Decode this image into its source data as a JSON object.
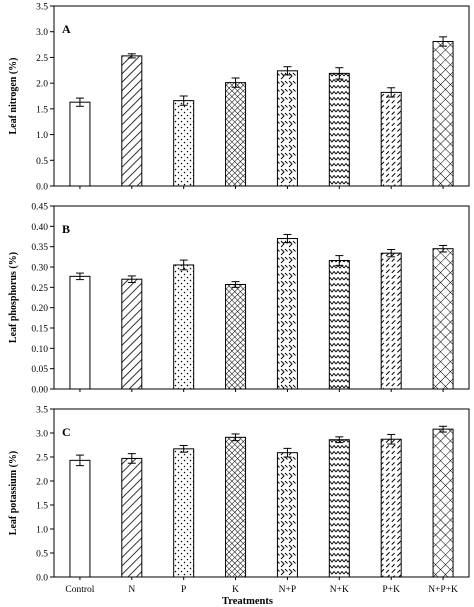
{
  "x_label": "Treatments",
  "chart_data": [
    {
      "type": "bar",
      "panel_label": "A",
      "ylabel": "Leaf nitrogen (%)",
      "ylim": [
        0,
        3.5
      ],
      "yticks": [
        "0.0",
        "0.5",
        "1.0",
        "1.5",
        "2.0",
        "2.5",
        "3.0",
        "3.5"
      ],
      "categories": [
        "Control",
        "N",
        "P",
        "K",
        "N+P",
        "N+K",
        "P+K",
        "N+P+K"
      ],
      "values": [
        1.63,
        2.53,
        1.66,
        2.01,
        2.24,
        2.19,
        1.82,
        2.81
      ],
      "errors": [
        0.08,
        0.04,
        0.09,
        0.09,
        0.08,
        0.11,
        0.09,
        0.09
      ],
      "patterns": [
        "none",
        "diag-right",
        "dots",
        "crosshatch-dense",
        "chevron",
        "zigzag",
        "dash-diag",
        "crosshatch"
      ]
    },
    {
      "type": "bar",
      "panel_label": "B",
      "ylabel": "Leaf phosphorus (%)",
      "ylim": [
        0,
        0.45
      ],
      "yticks": [
        "0.00",
        "0.05",
        "0.10",
        "0.15",
        "0.20",
        "0.25",
        "0.30",
        "0.35",
        "0.40",
        "0.45"
      ],
      "categories": [
        "Control",
        "N",
        "P",
        "K",
        "N+P",
        "N+K",
        "P+K",
        "N+P+K"
      ],
      "values": [
        0.277,
        0.27,
        0.305,
        0.257,
        0.37,
        0.316,
        0.334,
        0.345
      ],
      "errors": [
        0.008,
        0.008,
        0.012,
        0.007,
        0.01,
        0.012,
        0.009,
        0.008
      ],
      "patterns": [
        "none",
        "diag-right",
        "dots",
        "crosshatch-dense",
        "chevron",
        "zigzag",
        "dash-diag",
        "crosshatch"
      ]
    },
    {
      "type": "bar",
      "panel_label": "C",
      "ylabel": "Leaf potassium (%)",
      "ylim": [
        0,
        3.5
      ],
      "yticks": [
        "0.0",
        "0.5",
        "1.0",
        "1.5",
        "2.0",
        "2.5",
        "3.0",
        "3.5"
      ],
      "categories": [
        "Control",
        "N",
        "P",
        "K",
        "N+P",
        "N+K",
        "P+K",
        "N+P+K"
      ],
      "values": [
        2.43,
        2.47,
        2.67,
        2.91,
        2.59,
        2.86,
        2.87,
        3.08
      ],
      "errors": [
        0.11,
        0.1,
        0.07,
        0.07,
        0.09,
        0.06,
        0.1,
        0.06
      ],
      "patterns": [
        "none",
        "diag-right",
        "dots",
        "crosshatch-dense",
        "chevron",
        "zigzag",
        "dash-diag",
        "crosshatch"
      ]
    }
  ]
}
